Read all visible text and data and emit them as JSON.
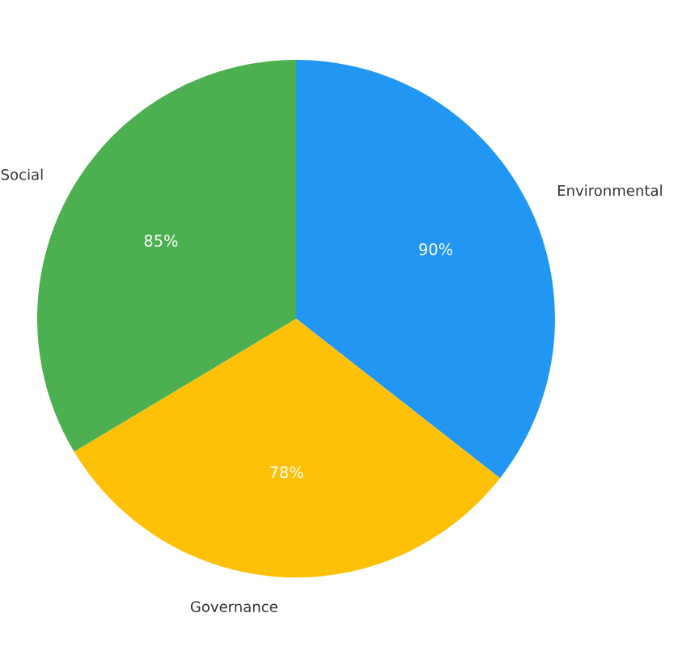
{
  "chart_data": {
    "type": "pie",
    "categories": [
      "Environmental",
      "Governance",
      "Social"
    ],
    "values": [
      90,
      78,
      85
    ],
    "colors": [
      "#2196f3",
      "#ffc107",
      "#4caf50"
    ],
    "value_labels": [
      "90%",
      "78%",
      "85%"
    ],
    "legend": false
  }
}
